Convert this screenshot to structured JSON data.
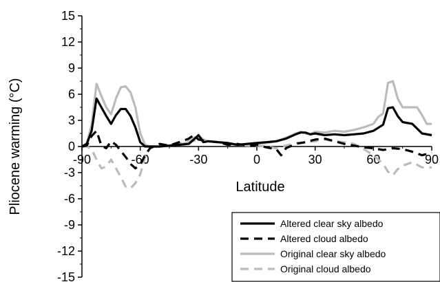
{
  "chart_data": {
    "type": "line",
    "xlabel": "Latitude",
    "ylabel": "Pliocene warming  (°C)",
    "xlim": [
      -90,
      90
    ],
    "ylim": [
      -15,
      15
    ],
    "xticks": [
      -90,
      -60,
      -30,
      0,
      30,
      60,
      90
    ],
    "yticks": [
      15,
      12,
      9,
      6,
      3,
      0,
      -3,
      -6,
      -9,
      -12,
      -15
    ],
    "xtick_labels": [
      "-90",
      "-60",
      "-30",
      "0",
      "30",
      "60",
      "90"
    ],
    "ytick_labels": [
      "15",
      "12",
      "9",
      "6",
      "3",
      "0",
      "-3",
      "-6",
      "-9",
      "-12",
      "-15"
    ],
    "legend_position": "bottom-right",
    "series": [
      {
        "name": "Altered clear sky albedo",
        "color": "#000000",
        "dash": "solid",
        "points": [
          [
            -90,
            0
          ],
          [
            -87.5,
            0.3
          ],
          [
            -85,
            1.8
          ],
          [
            -82.5,
            5.5
          ],
          [
            -80,
            4.5
          ],
          [
            -77.5,
            3.5
          ],
          [
            -75,
            2.6
          ],
          [
            -72.5,
            3.6
          ],
          [
            -70,
            4.3
          ],
          [
            -67.5,
            4.3
          ],
          [
            -65,
            3.5
          ],
          [
            -62.5,
            2.2
          ],
          [
            -60,
            0.5
          ],
          [
            -57.5,
            0
          ],
          [
            -55,
            0
          ],
          [
            -52.5,
            0
          ],
          [
            -50,
            0
          ],
          [
            -45,
            0.1
          ],
          [
            -40,
            0.2
          ],
          [
            -35,
            0.3
          ],
          [
            -32.5,
            0.8
          ],
          [
            -30,
            1.3
          ],
          [
            -27.5,
            0.5
          ],
          [
            -25,
            0.6
          ],
          [
            -20,
            0.5
          ],
          [
            -15,
            0.4
          ],
          [
            -10,
            0.2
          ],
          [
            -5,
            0.3
          ],
          [
            0,
            0.4
          ],
          [
            5,
            0.5
          ],
          [
            10,
            0.6
          ],
          [
            15,
            0.9
          ],
          [
            20,
            1.4
          ],
          [
            22.5,
            1.6
          ],
          [
            25,
            1.6
          ],
          [
            27.5,
            1.4
          ],
          [
            30,
            1.5
          ],
          [
            35,
            1.3
          ],
          [
            40,
            1.4
          ],
          [
            45,
            1.3
          ],
          [
            50,
            1.4
          ],
          [
            55,
            1.5
          ],
          [
            60,
            1.8
          ],
          [
            65,
            2.5
          ],
          [
            67.5,
            4.4
          ],
          [
            70,
            4.5
          ],
          [
            72.5,
            3.5
          ],
          [
            75,
            2.8
          ],
          [
            80,
            2.6
          ],
          [
            85,
            1.5
          ],
          [
            90,
            1.3
          ]
        ]
      },
      {
        "name": "Altered cloud albedo",
        "color": "#000000",
        "dash": "dashed",
        "points": [
          [
            -90,
            0
          ],
          [
            -87.5,
            0.1
          ],
          [
            -85,
            1.2
          ],
          [
            -82.5,
            1.8
          ],
          [
            -80,
            0.1
          ],
          [
            -77.5,
            -0.2
          ],
          [
            -75,
            0.6
          ],
          [
            -72.5,
            0.2
          ],
          [
            -70,
            -0.5
          ],
          [
            -67.5,
            -1.2
          ],
          [
            -65,
            -2.0
          ],
          [
            -62.5,
            -2.5
          ],
          [
            -60,
            -2.1
          ],
          [
            -57.5,
            -1.0
          ],
          [
            -55,
            -0.2
          ],
          [
            -50,
            0.3
          ],
          [
            -45,
            0.1
          ],
          [
            -40,
            0.5
          ],
          [
            -35,
            0.9
          ],
          [
            -32.5,
            1.3
          ],
          [
            -30,
            0.8
          ],
          [
            -25,
            0.6
          ],
          [
            -20,
            0.5
          ],
          [
            -15,
            0.2
          ],
          [
            -10,
            0.3
          ],
          [
            -5,
            0.1
          ],
          [
            0,
            0.2
          ],
          [
            5,
            -0.1
          ],
          [
            10,
            -0.3
          ],
          [
            12.5,
            -1.0
          ],
          [
            15,
            -0.2
          ],
          [
            20,
            0.3
          ],
          [
            25,
            0.5
          ],
          [
            30,
            0.8
          ],
          [
            35,
            0.9
          ],
          [
            40,
            0.6
          ],
          [
            45,
            0.3
          ],
          [
            50,
            0.1
          ],
          [
            55,
            -0.1
          ],
          [
            60,
            -0.2
          ],
          [
            65,
            -0.4
          ],
          [
            70,
            -0.2
          ],
          [
            75,
            -0.3
          ],
          [
            80,
            -0.6
          ],
          [
            85,
            -1.0
          ],
          [
            90,
            -0.7
          ]
        ]
      },
      {
        "name": "Original clear sky albedo",
        "color": "#bbbbbb",
        "dash": "solid",
        "points": [
          [
            -90,
            0
          ],
          [
            -87.5,
            0.4
          ],
          [
            -85,
            2.5
          ],
          [
            -82.5,
            7.2
          ],
          [
            -80,
            5.8
          ],
          [
            -77.5,
            4.5
          ],
          [
            -75,
            3.7
          ],
          [
            -72.5,
            5.5
          ],
          [
            -70,
            6.8
          ],
          [
            -67.5,
            6.9
          ],
          [
            -65,
            6.2
          ],
          [
            -62.5,
            4.5
          ],
          [
            -60,
            1.5
          ],
          [
            -57.5,
            0.2
          ],
          [
            -55,
            0
          ],
          [
            -50,
            0
          ],
          [
            -45,
            0.1
          ],
          [
            -40,
            0.2
          ],
          [
            -35,
            0.5
          ],
          [
            -32.5,
            1.0
          ],
          [
            -30,
            1.2
          ],
          [
            -27.5,
            0.8
          ],
          [
            -25,
            0.6
          ],
          [
            -20,
            0.5
          ],
          [
            -15,
            0.4
          ],
          [
            -10,
            0.2
          ],
          [
            -5,
            0.3
          ],
          [
            0,
            0.3
          ],
          [
            5,
            0.4
          ],
          [
            10,
            0.6
          ],
          [
            15,
            1.0
          ],
          [
            20,
            1.5
          ],
          [
            22.5,
            1.7
          ],
          [
            25,
            1.5
          ],
          [
            27.5,
            1.4
          ],
          [
            30,
            1.7
          ],
          [
            35,
            1.6
          ],
          [
            40,
            1.8
          ],
          [
            45,
            1.7
          ],
          [
            50,
            1.9
          ],
          [
            55,
            2.2
          ],
          [
            60,
            2.6
          ],
          [
            62.5,
            3.4
          ],
          [
            65,
            3.8
          ],
          [
            67.5,
            7.3
          ],
          [
            70,
            7.5
          ],
          [
            72.5,
            5.5
          ],
          [
            75,
            4.5
          ],
          [
            80,
            4.5
          ],
          [
            82.5,
            4.5
          ],
          [
            85,
            3.6
          ],
          [
            87.5,
            2.6
          ],
          [
            90,
            2.6
          ]
        ]
      },
      {
        "name": "Original cloud albedo",
        "color": "#bbbbbb",
        "dash": "dashed",
        "points": [
          [
            -90,
            0
          ],
          [
            -87.5,
            0
          ],
          [
            -85,
            -0.3
          ],
          [
            -82.5,
            -1.5
          ],
          [
            -80,
            -2.5
          ],
          [
            -77.5,
            -2.3
          ],
          [
            -75,
            -1.5
          ],
          [
            -72.5,
            -2.5
          ],
          [
            -70,
            -3.5
          ],
          [
            -67.5,
            -4.6
          ],
          [
            -65,
            -4.8
          ],
          [
            -62.5,
            -4.2
          ],
          [
            -60,
            -3.2
          ],
          [
            -57.5,
            -1.2
          ],
          [
            -55,
            -0.2
          ],
          [
            -50,
            0.2
          ],
          [
            -45,
            0.1
          ],
          [
            -40,
            0.3
          ],
          [
            -35,
            0.6
          ],
          [
            -30,
            0.7
          ],
          [
            -25,
            0.6
          ],
          [
            -20,
            0.5
          ],
          [
            -15,
            0.3
          ],
          [
            -10,
            0.2
          ],
          [
            -5,
            0.1
          ],
          [
            0,
            0.1
          ],
          [
            5,
            0
          ],
          [
            10,
            -0.2
          ],
          [
            15,
            0.1
          ],
          [
            20,
            0.4
          ],
          [
            25,
            0.5
          ],
          [
            30,
            0.6
          ],
          [
            35,
            0.8
          ],
          [
            40,
            0.6
          ],
          [
            45,
            0.5
          ],
          [
            50,
            0.3
          ],
          [
            55,
            -0.3
          ],
          [
            60,
            -1.0
          ],
          [
            65,
            -2.0
          ],
          [
            67.5,
            -2.9
          ],
          [
            70,
            -3.3
          ],
          [
            72.5,
            -2.6
          ],
          [
            75,
            -2.2
          ],
          [
            80,
            -1.8
          ],
          [
            85,
            -2.4
          ],
          [
            90,
            -2.4
          ]
        ]
      }
    ]
  }
}
